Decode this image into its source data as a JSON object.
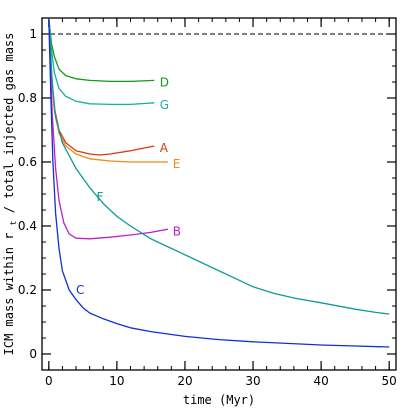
{
  "chart_data": {
    "type": "line",
    "xlabel": "time (Myr)",
    "ylabel_main": "ICM mass within r",
    "ylabel_sub": "t",
    "ylabel_rest": " / total injected gas mass",
    "xlim": [
      -1,
      51
    ],
    "ylim": [
      -0.05,
      1.05
    ],
    "x_ticks": [
      0,
      10,
      20,
      30,
      40,
      50
    ],
    "y_ticks": [
      0,
      0.2,
      0.4,
      0.6,
      0.8,
      1
    ],
    "x_tick_labels": [
      "0",
      "10",
      "20",
      "30",
      "40",
      "50"
    ],
    "y_tick_labels": [
      "0",
      "0.2",
      "0.4",
      "0.6",
      "0.8",
      "1"
    ],
    "x_minor_step": 2,
    "y_minor_step": 0.05,
    "reference_line": {
      "y": 1.0,
      "style": "dashed",
      "color": "#000000"
    },
    "series": [
      {
        "name": "D",
        "color": "#119c11",
        "points": [
          [
            0,
            1.05
          ],
          [
            0.4,
            0.97
          ],
          [
            0.8,
            0.93
          ],
          [
            1.5,
            0.89
          ],
          [
            2.5,
            0.87
          ],
          [
            4,
            0.86
          ],
          [
            6,
            0.855
          ],
          [
            9,
            0.852
          ],
          [
            12,
            0.852
          ],
          [
            15.5,
            0.855
          ]
        ]
      },
      {
        "name": "G",
        "color": "#1ab0a0",
        "points": [
          [
            0,
            1.05
          ],
          [
            0.4,
            0.95
          ],
          [
            0.8,
            0.88
          ],
          [
            1.5,
            0.83
          ],
          [
            2.5,
            0.805
          ],
          [
            4,
            0.79
          ],
          [
            6,
            0.782
          ],
          [
            9,
            0.78
          ],
          [
            12,
            0.78
          ],
          [
            15.5,
            0.785
          ]
        ]
      },
      {
        "name": "A",
        "color": "#d93a10",
        "points": [
          [
            0,
            1.05
          ],
          [
            0.4,
            0.88
          ],
          [
            0.8,
            0.77
          ],
          [
            1.5,
            0.7
          ],
          [
            2.5,
            0.66
          ],
          [
            4,
            0.635
          ],
          [
            6,
            0.625
          ],
          [
            7.5,
            0.622
          ],
          [
            9,
            0.625
          ],
          [
            12,
            0.635
          ],
          [
            15.5,
            0.65
          ]
        ]
      },
      {
        "name": "E",
        "color": "#f08a10",
        "points": [
          [
            0,
            1.05
          ],
          [
            0.4,
            0.87
          ],
          [
            0.8,
            0.76
          ],
          [
            1.5,
            0.69
          ],
          [
            2.5,
            0.65
          ],
          [
            4,
            0.625
          ],
          [
            6,
            0.61
          ],
          [
            9,
            0.603
          ],
          [
            12,
            0.6
          ],
          [
            15,
            0.6
          ],
          [
            17.5,
            0.6
          ]
        ]
      },
      {
        "name": "B",
        "color": "#c020c8",
        "points": [
          [
            0,
            1.05
          ],
          [
            0.5,
            0.75
          ],
          [
            1,
            0.58
          ],
          [
            1.5,
            0.48
          ],
          [
            2.2,
            0.41
          ],
          [
            3,
            0.375
          ],
          [
            4,
            0.362
          ],
          [
            6,
            0.36
          ],
          [
            9,
            0.365
          ],
          [
            12,
            0.372
          ],
          [
            15,
            0.38
          ],
          [
            17.5,
            0.39
          ]
        ]
      },
      {
        "name": "F",
        "color": "#109a9a",
        "points": [
          [
            0,
            1.05
          ],
          [
            0.5,
            0.85
          ],
          [
            1,
            0.74
          ],
          [
            2,
            0.66
          ],
          [
            4,
            0.58
          ],
          [
            6,
            0.52
          ],
          [
            8,
            0.47
          ],
          [
            10,
            0.43
          ],
          [
            12,
            0.4
          ],
          [
            15,
            0.36
          ],
          [
            18,
            0.33
          ],
          [
            21,
            0.3
          ],
          [
            24,
            0.27
          ],
          [
            27,
            0.24
          ],
          [
            30,
            0.21
          ],
          [
            33,
            0.19
          ],
          [
            36,
            0.175
          ],
          [
            40,
            0.16
          ],
          [
            45,
            0.14
          ],
          [
            48,
            0.13
          ],
          [
            50,
            0.125
          ]
        ]
      },
      {
        "name": "C",
        "color": "#1030d8",
        "points": [
          [
            0,
            1.05
          ],
          [
            0.3,
            0.8
          ],
          [
            0.6,
            0.6
          ],
          [
            1,
            0.44
          ],
          [
            1.5,
            0.33
          ],
          [
            2,
            0.26
          ],
          [
            3,
            0.2
          ],
          [
            4,
            0.17
          ],
          [
            5,
            0.145
          ],
          [
            6,
            0.128
          ],
          [
            8,
            0.11
          ],
          [
            10,
            0.095
          ],
          [
            12,
            0.082
          ],
          [
            15,
            0.07
          ],
          [
            20,
            0.055
          ],
          [
            25,
            0.045
          ],
          [
            30,
            0.038
          ],
          [
            35,
            0.033
          ],
          [
            40,
            0.028
          ],
          [
            45,
            0.025
          ],
          [
            50,
            0.022
          ]
        ]
      }
    ],
    "series_labels": [
      {
        "text": "D",
        "color": "#119c11",
        "x": 16.3,
        "y": 0.848
      },
      {
        "text": "G",
        "color": "#1ab0a0",
        "x": 16.3,
        "y": 0.778
      },
      {
        "text": "A",
        "color": "#d93a10",
        "x": 16.3,
        "y": 0.643
      },
      {
        "text": "E",
        "color": "#f08a10",
        "x": 18.2,
        "y": 0.593
      },
      {
        "text": "B",
        "color": "#c020c8",
        "x": 18.2,
        "y": 0.383
      },
      {
        "text": "F",
        "color": "#109a9a",
        "x": 7.0,
        "y": 0.49
      },
      {
        "text": "C",
        "color": "#1030d8",
        "x": 4.0,
        "y": 0.2
      }
    ]
  }
}
